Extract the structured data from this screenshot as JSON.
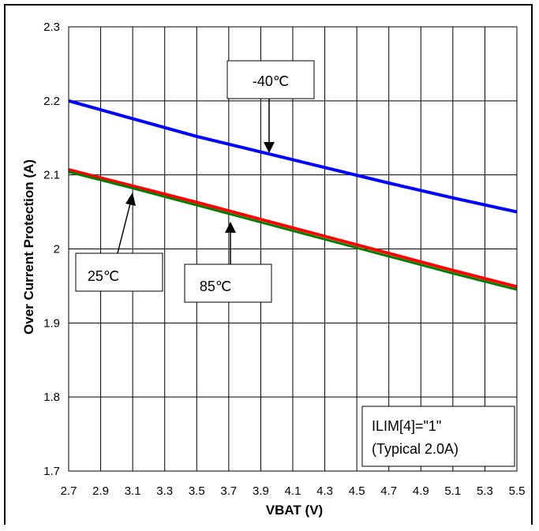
{
  "chart_data": {
    "type": "line",
    "xlabel": "VBAT (V)",
    "ylabel": "Over Current Protection (A)",
    "xlim": [
      2.7,
      5.5
    ],
    "ylim": [
      1.7,
      2.3
    ],
    "x_ticks": [
      "2.7",
      "2.9",
      "3.1",
      "3.3",
      "3.5",
      "3.7",
      "3.9",
      "4.1",
      "4.3",
      "4.5",
      "4.7",
      "4.9",
      "5.1",
      "5.3",
      "5.5"
    ],
    "y_ticks": [
      "1.7",
      "1.8",
      "1.9",
      "2",
      "2.1",
      "2.2",
      "2.3"
    ],
    "grid": true,
    "series": [
      {
        "name": "-40℃",
        "color": "#0000ff",
        "x": [
          2.7,
          3.1,
          3.5,
          3.9,
          4.3,
          4.7,
          5.1,
          5.5
        ],
        "y": [
          2.2,
          2.176,
          2.152,
          2.131,
          2.11,
          2.089,
          2.069,
          2.05
        ]
      },
      {
        "name": "25℃",
        "color": "#ff0000",
        "x": [
          2.7,
          3.1,
          3.5,
          3.9,
          4.3,
          4.7,
          5.1,
          5.5
        ],
        "y": [
          2.107,
          2.085,
          2.063,
          2.04,
          2.017,
          1.994,
          1.971,
          1.949
        ]
      },
      {
        "name": "85℃",
        "color": "#008000",
        "x": [
          2.7,
          3.1,
          3.5,
          3.9,
          4.3,
          4.7,
          5.1,
          5.5
        ],
        "y": [
          2.104,
          2.082,
          2.059,
          2.036,
          2.013,
          1.99,
          1.967,
          1.945
        ]
      }
    ],
    "callouts": [
      {
        "label": "-40℃",
        "target_series": "-40℃"
      },
      {
        "label": "25℃",
        "target_series": "25℃"
      },
      {
        "label": "85℃",
        "target_series": "85℃"
      }
    ],
    "note": {
      "line1": "ILIM[4]=\"1\"",
      "line2": "(Typical 2.0A)"
    }
  }
}
